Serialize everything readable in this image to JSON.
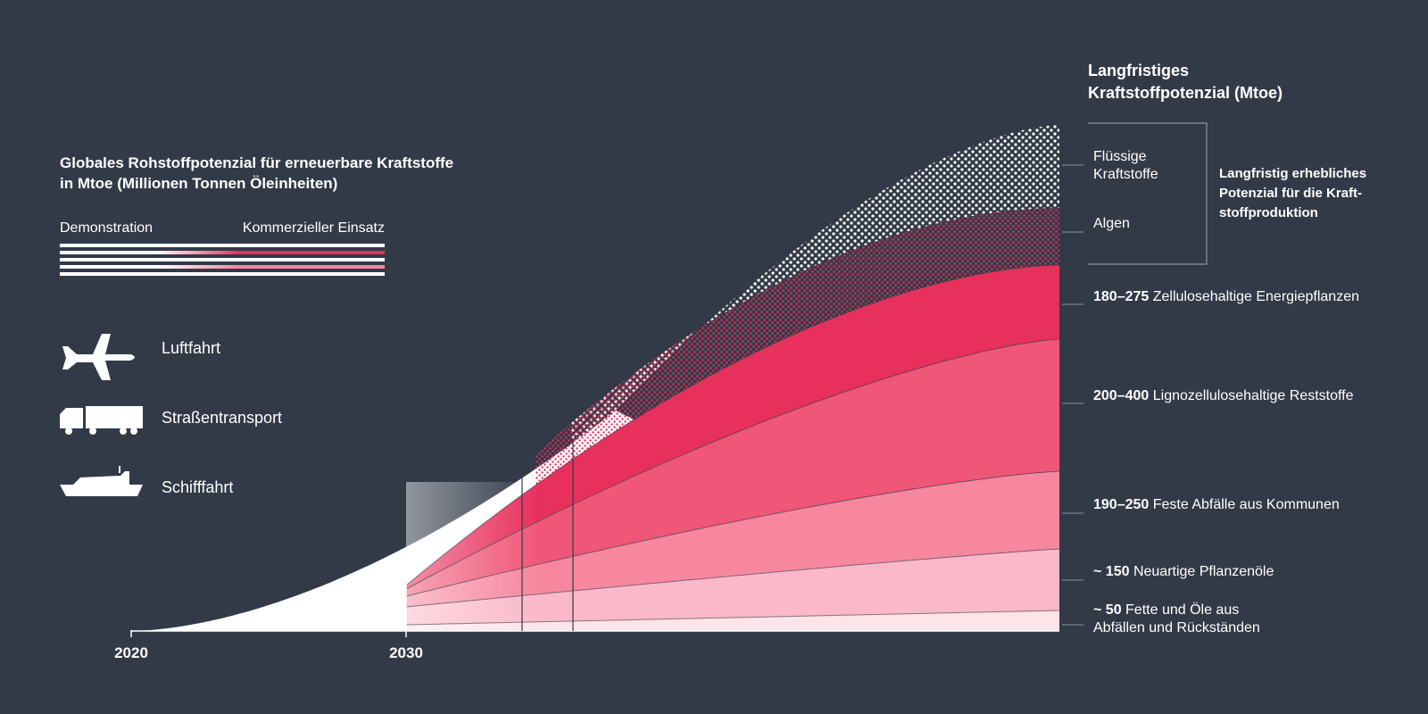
{
  "chart_data": {
    "type": "area",
    "title_lines": [
      "Globales Rohstoffpotenzial für erneuerbare Kraftstoffe",
      "in Mtoe (Millionen Tonnen Öleinheiten)"
    ],
    "x_ticks": [
      "2020",
      "2030"
    ],
    "legend": {
      "phase_labels": [
        "Demonstration",
        "Kommerzieller Einsatz"
      ],
      "transport_modes": [
        {
          "label": "Luftfahrt",
          "icon": "airplane-icon"
        },
        {
          "label": "Straßentransport",
          "icon": "truck-icon"
        },
        {
          "label": "Schifffahrt",
          "icon": "ship-icon"
        }
      ]
    },
    "right_title_lines": [
      "Langfristiges",
      "Kraftstoffpotenzial (Mtoe)"
    ],
    "bracket_text_lines": [
      "Langfristig erhebliches",
      "Potenzial für die Kraft-",
      "stoffproduktion"
    ],
    "series": [
      {
        "range": "~ 50",
        "label_lines": [
          "Fette und Öle aus",
          "Abfällen und Rückständen"
        ],
        "color": "#fde4e8"
      },
      {
        "range": "~ 150",
        "label_lines": [
          "Neuartige Pflanzenöle"
        ],
        "color": "#fbb8c8"
      },
      {
        "range": "190–250",
        "label_lines": [
          "Feste Abfälle aus Kommunen"
        ],
        "color": "#f6879f"
      },
      {
        "range": "200–400",
        "label_lines": [
          "Lignozellulosehaltige Reststoffe"
        ],
        "color": "#ef5677"
      },
      {
        "range": "180–275",
        "label_lines": [
          "Zellulosehaltige Energiepflanzen"
        ],
        "color": "#e8305d"
      },
      {
        "range": "",
        "label_lines": [
          "Algen"
        ],
        "color": "#e8305d"
      },
      {
        "range": "",
        "label_lines": [
          "Flüssige",
          "Kraftstoffe"
        ],
        "color": "#ffffff"
      }
    ]
  }
}
